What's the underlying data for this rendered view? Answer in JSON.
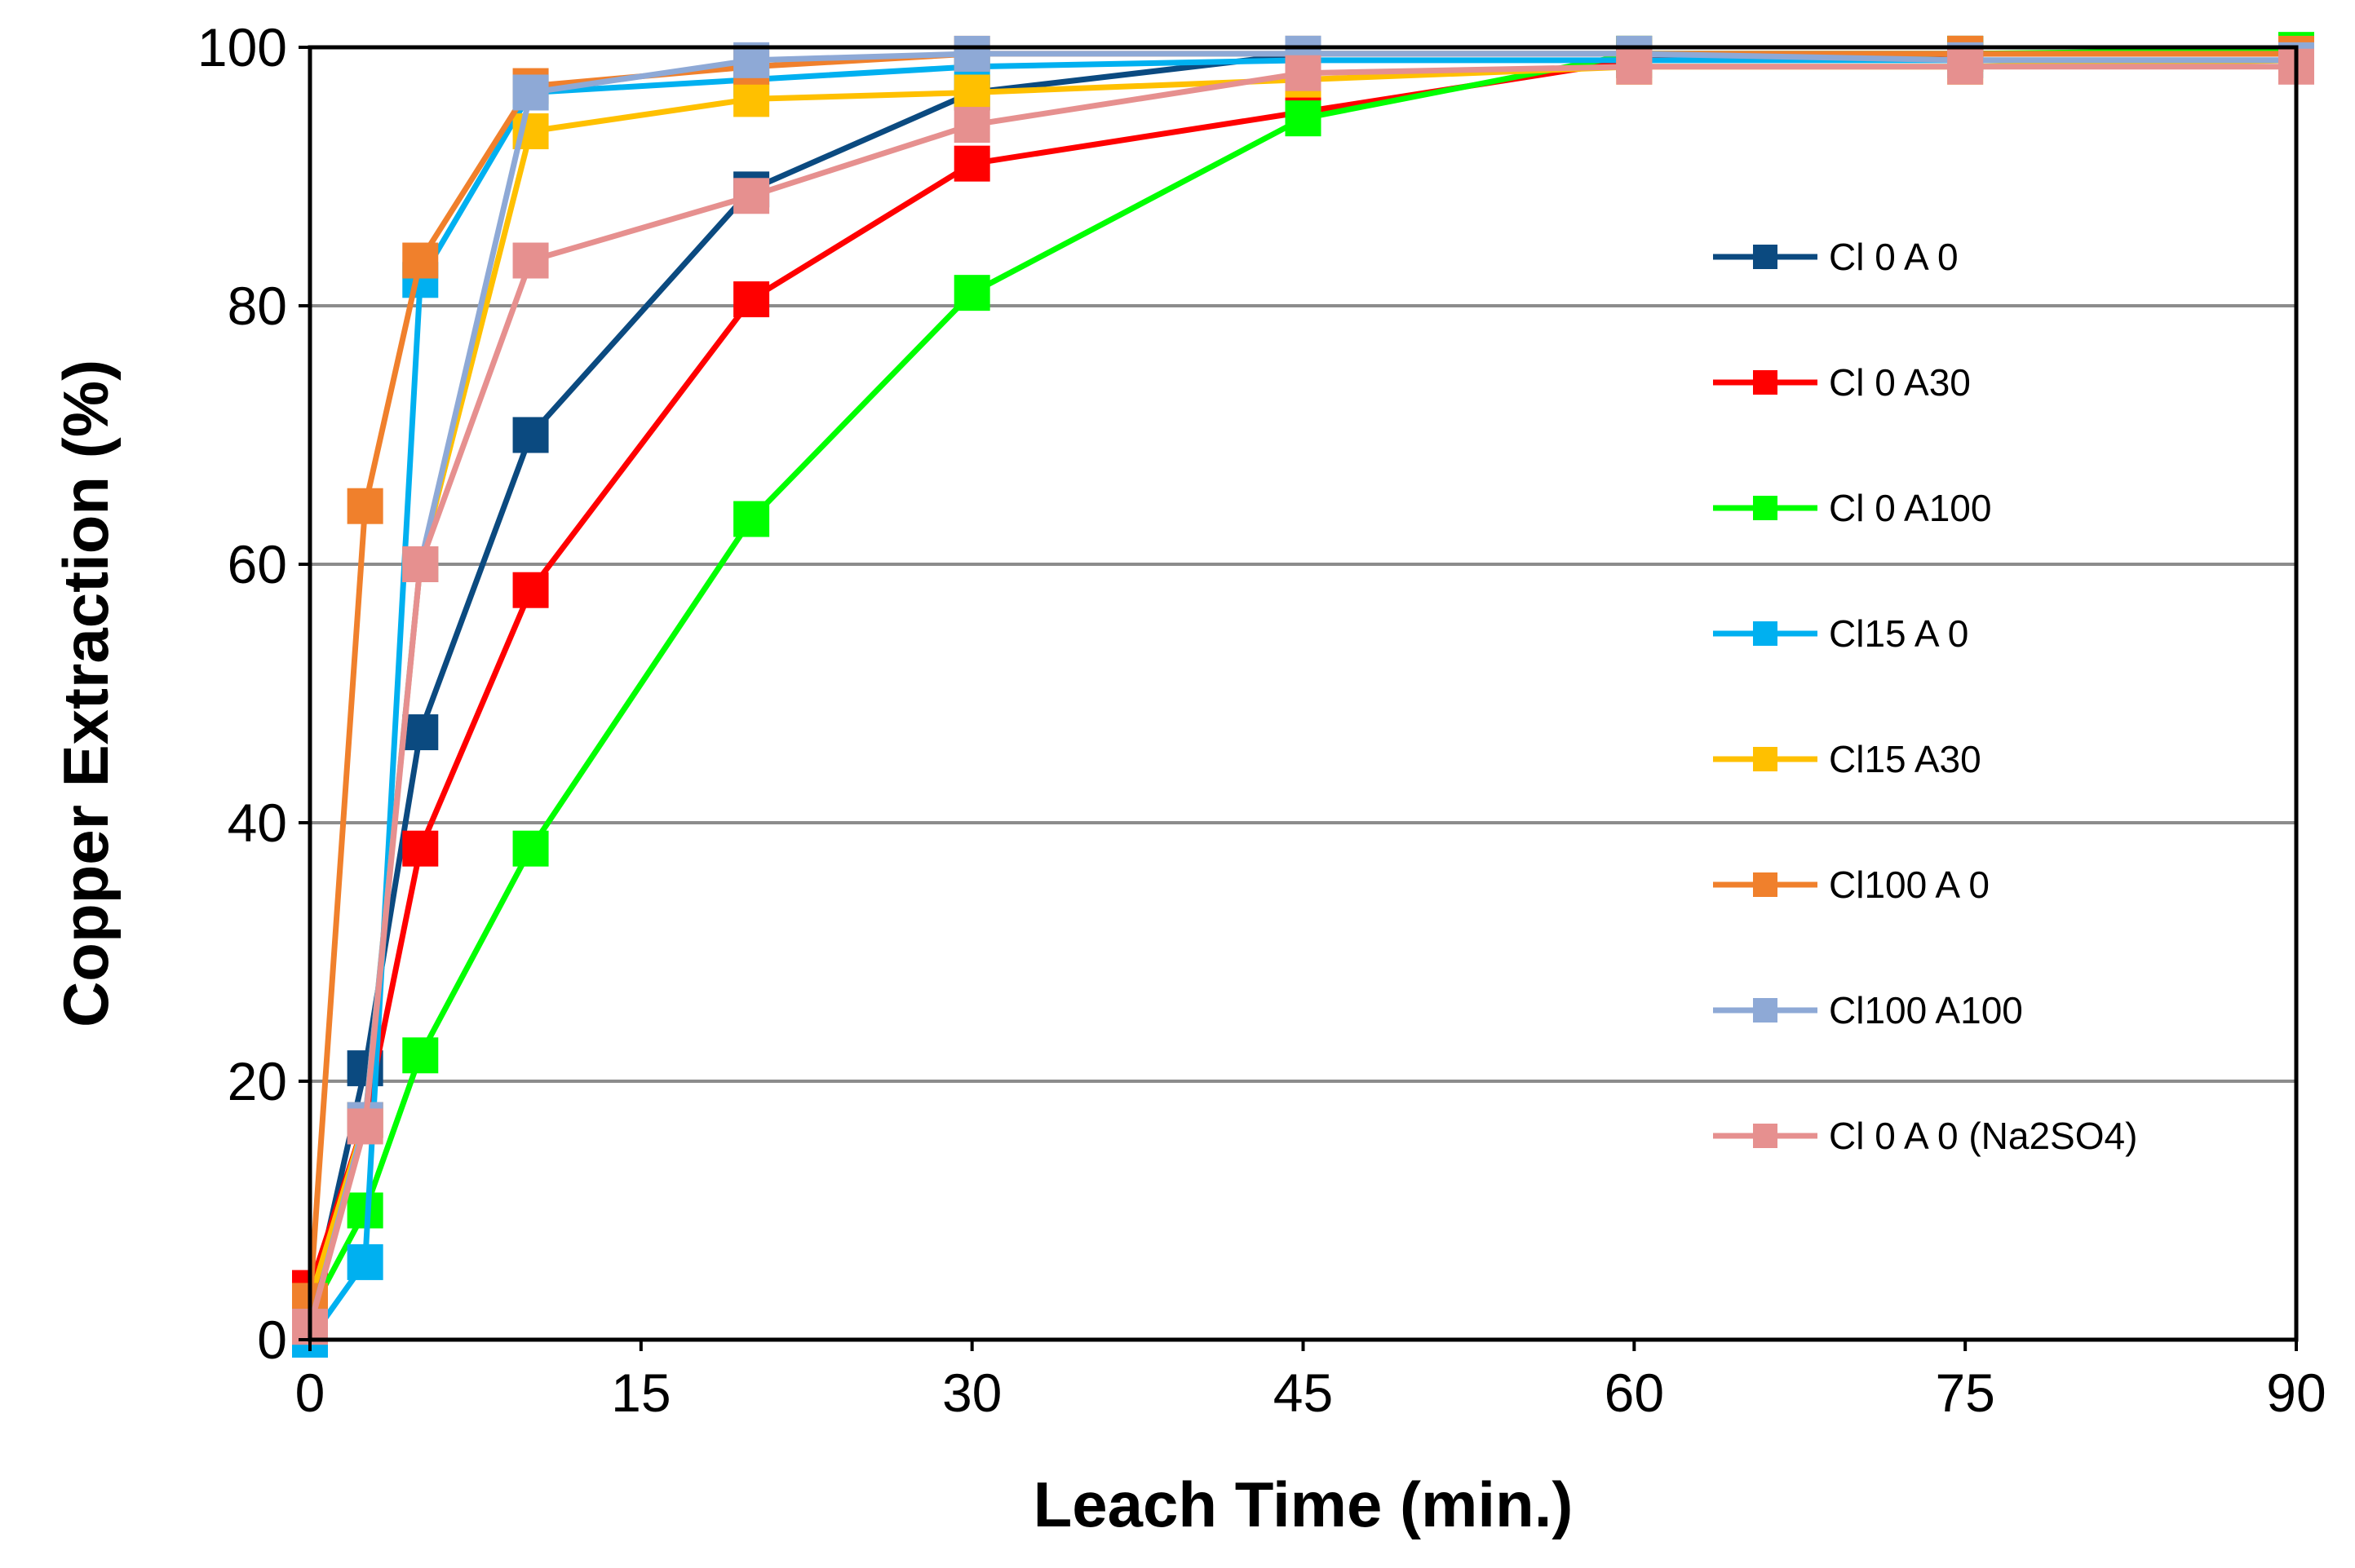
{
  "chart_data": {
    "type": "line",
    "title": "",
    "xlabel": "Leach Time (min.)",
    "ylabel": "Copper Extraction (%)",
    "xlim": [
      0,
      90
    ],
    "ylim": [
      0,
      100
    ],
    "xticks": [
      0,
      15,
      30,
      45,
      60,
      75,
      90
    ],
    "yticks": [
      0,
      20,
      40,
      60,
      80,
      100
    ],
    "xtick_labels": [
      "0",
      "15",
      "30",
      "45",
      "60",
      "75",
      "90"
    ],
    "ytick_labels": [
      "0",
      "20",
      "40",
      "60",
      "80",
      "100"
    ],
    "grid": "horizontal",
    "legend_position": "right",
    "series": [
      {
        "name": "Cl 0 A 0",
        "color": "#0B4A80",
        "x": [
          0,
          2.5,
          5,
          10,
          20,
          30,
          45,
          60,
          75,
          90
        ],
        "y": [
          2,
          21,
          47,
          70,
          89,
          96.5,
          99.5,
          99.5,
          99.5,
          99.5
        ]
      },
      {
        "name": "Cl 0 A30",
        "color": "#FF0000",
        "x": [
          0,
          2.5,
          5,
          10,
          20,
          30,
          45,
          60,
          75,
          90
        ],
        "y": [
          4,
          17,
          38,
          58,
          80.5,
          91,
          95,
          99,
          99.5,
          99.5
        ]
      },
      {
        "name": "Cl 0 A100",
        "color": "#00FF00",
        "x": [
          0,
          2.5,
          5,
          10,
          20,
          30,
          45,
          60,
          75,
          90
        ],
        "y": [
          2,
          10,
          22,
          38,
          63.5,
          81,
          94.5,
          99.5,
          99.5,
          99.8
        ]
      },
      {
        "name": "Cl15 A 0",
        "color": "#00B0F0",
        "x": [
          0,
          2.5,
          5,
          10,
          20,
          30,
          45,
          60,
          75,
          90
        ],
        "y": [
          0,
          6,
          82,
          96.5,
          97.5,
          98.5,
          99,
          99,
          99,
          99
        ]
      },
      {
        "name": "Cl15 A30",
        "color": "#FFC000",
        "x": [
          0,
          2.5,
          5,
          10,
          20,
          30,
          45,
          60,
          75,
          90
        ],
        "y": [
          3,
          17,
          60,
          93.5,
          96,
          96.5,
          97.5,
          98.5,
          98.5,
          99
        ]
      },
      {
        "name": "Cl100 A 0",
        "color": "#F0802C",
        "x": [
          0,
          2.5,
          5,
          10,
          20,
          30,
          45,
          60,
          75,
          90
        ],
        "y": [
          3,
          64.5,
          83.5,
          97,
          98.5,
          99.5,
          99.5,
          99.5,
          99.5,
          99.5
        ]
      },
      {
        "name": "Cl100 A100",
        "color": "#8EA9D6",
        "x": [
          0,
          2.5,
          5,
          10,
          20,
          30,
          45,
          60,
          75,
          90
        ],
        "y": [
          1,
          17,
          60,
          96.5,
          99,
          99.5,
          99.5,
          99.5,
          99,
          99
        ]
      },
      {
        "name": "Cl 0 A 0 (Na2SO4)",
        "color": "#E6908F",
        "x": [
          0,
          2.5,
          5,
          10,
          20,
          30,
          45,
          60,
          75,
          90
        ],
        "y": [
          1,
          16.5,
          60,
          83.5,
          88.5,
          94,
          98,
          98.5,
          98.5,
          98.5
        ]
      }
    ]
  }
}
